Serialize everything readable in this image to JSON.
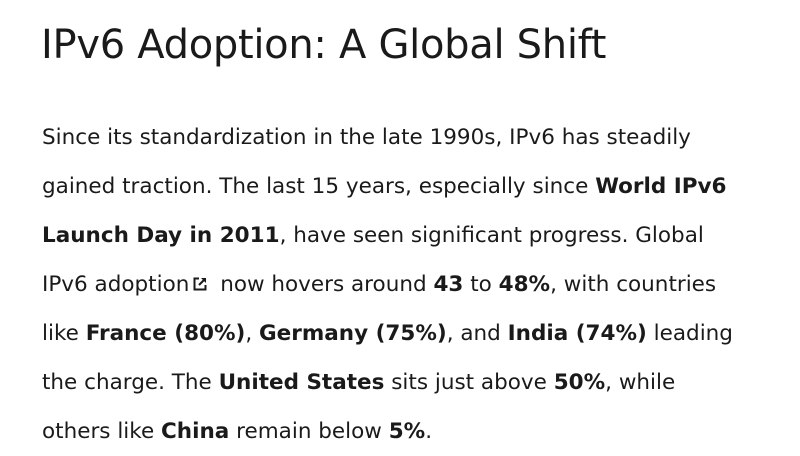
{
  "title": "IPv6 Adoption: A Global Shift",
  "paragraph": {
    "lines": [
      [
        {
          "text": "Since its standardization in the late 1990s, IPv6 has steadily"
        }
      ],
      [
        {
          "text": "gained traction. The last 15 years, especially since "
        },
        {
          "text": "World IPv6",
          "bold": true
        }
      ],
      [
        {
          "text": "Launch Day in 2011",
          "bold": true
        },
        {
          "text": ", have seen significant progress. Global"
        }
      ],
      [
        {
          "text": "IPv6 adoption",
          "link": true,
          "icon": "external-link-icon"
        },
        {
          "text": " now hovers around "
        },
        {
          "text": "43",
          "bold": true
        },
        {
          "text": " to "
        },
        {
          "text": "48%",
          "bold": true
        },
        {
          "text": ", with countries"
        }
      ],
      [
        {
          "text": "like "
        },
        {
          "text": "France (80%)",
          "bold": true
        },
        {
          "text": ", "
        },
        {
          "text": "Germany (75%)",
          "bold": true
        },
        {
          "text": ", and "
        },
        {
          "text": "India (74%)",
          "bold": true
        },
        {
          "text": " leading"
        }
      ],
      [
        {
          "text": "the charge. The "
        },
        {
          "text": "United States",
          "bold": true
        },
        {
          "text": " sits just above "
        },
        {
          "text": "50%",
          "bold": true
        },
        {
          "text": ", while"
        }
      ],
      [
        {
          "text": "others like "
        },
        {
          "text": "China",
          "bold": true
        },
        {
          "text": " remain below "
        },
        {
          "text": "5%",
          "bold": true
        },
        {
          "text": "."
        }
      ]
    ]
  }
}
